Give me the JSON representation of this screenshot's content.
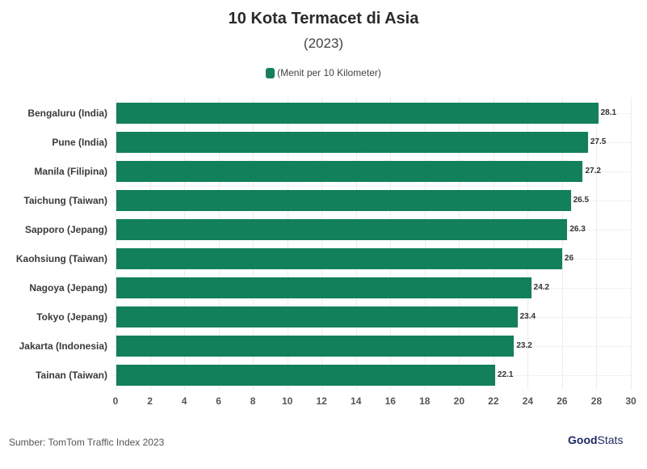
{
  "header": {
    "title": "10 Kota Termacet di Asia",
    "subtitle": "(2023)"
  },
  "legend": {
    "label": "(Menit per 10 Kilometer)",
    "color": "#12805a"
  },
  "footer": {
    "source": "Sumber: TomTom Traffic Index 2023",
    "brand_part1": "Good",
    "brand_part2": "Stats"
  },
  "colors": {
    "bar": "#12805a",
    "brand": "#1f2a6b"
  },
  "chart_data": {
    "type": "bar",
    "orientation": "horizontal",
    "title": "10 Kota Termacet di Asia",
    "subtitle": "(2023)",
    "xlabel": "",
    "ylabel": "",
    "legend": [
      "(Menit per 10 Kilometer)"
    ],
    "legend_position": "top",
    "grid": true,
    "xlim": [
      0,
      30
    ],
    "x_ticks": [
      "0",
      "2",
      "4",
      "6",
      "8",
      "10",
      "12",
      "14",
      "16",
      "18",
      "20",
      "22",
      "24",
      "26",
      "28",
      "30"
    ],
    "categories": [
      "Bengaluru (India)",
      "Pune (India)",
      "Manila (Filipina)",
      "Taichung (Taiwan)",
      "Sapporo (Jepang)",
      "Kaohsiung (Taiwan)",
      "Nagoya (Jepang)",
      "Tokyo (Jepang)",
      "Jakarta (Indonesia)",
      "Tainan (Taiwan)"
    ],
    "values": [
      28.1,
      27.5,
      27.2,
      26.5,
      26.3,
      26,
      24.2,
      23.4,
      23.2,
      22.1
    ],
    "value_labels": [
      "28.1",
      "27.5",
      "27.2",
      "26.5",
      "26.3",
      "26",
      "24.2",
      "23.4",
      "23.2",
      "22.1"
    ],
    "source": "Sumber: TomTom Traffic Index 2023"
  }
}
